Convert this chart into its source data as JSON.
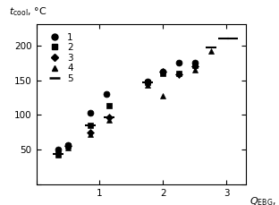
{
  "top_label": "$t_{\\rm cool}$, °C",
  "xlabel": "$Q_{\\rm EBG}$, kW",
  "xlim": [
    0,
    3.3
  ],
  "ylim": [
    0,
    230
  ],
  "xticks": [
    0,
    1,
    2,
    3
  ],
  "yticks": [
    0,
    50,
    100,
    150,
    200
  ],
  "series_order": [
    "1_circle",
    "2_square",
    "3_diamond",
    "4_triangle",
    "5_dash"
  ],
  "series": {
    "1_circle": {
      "x": [
        0.35,
        0.5,
        0.85,
        1.1,
        1.75,
        2.0,
        2.25,
        2.5
      ],
      "y": [
        50,
        57,
        103,
        130,
        148,
        162,
        175,
        175
      ],
      "marker": "o",
      "ms": 5,
      "label": "1"
    },
    "2_square": {
      "x": [
        0.35,
        0.5,
        0.85,
        1.15,
        1.75,
        2.0,
        2.25,
        2.5
      ],
      "y": [
        44,
        55,
        85,
        113,
        147,
        160,
        160,
        172
      ],
      "marker": "s",
      "ms": 5,
      "label": "2"
    },
    "3_diamond": {
      "x": [
        0.5,
        0.85,
        1.15,
        1.75,
        2.0,
        2.25,
        2.5
      ],
      "y": [
        55,
        75,
        97,
        147,
        162,
        158,
        170
      ],
      "marker": "D",
      "ms": 4,
      "label": "3"
    },
    "4_triangle": {
      "x": [
        0.35,
        0.5,
        0.85,
        1.15,
        1.75,
        2.0,
        2.5,
        2.75
      ],
      "y": [
        43,
        53,
        72,
        93,
        143,
        127,
        165,
        192
      ],
      "marker": "^",
      "ms": 5,
      "label": "4"
    },
    "5_dash": {
      "x": [
        0.35,
        0.85,
        1.15,
        1.75,
        2.75,
        2.95,
        3.1
      ],
      "y": [
        44,
        85,
        97,
        147,
        197,
        210,
        210
      ],
      "marker": "_",
      "ms": 8,
      "label": "5"
    }
  },
  "color": "black",
  "legend_fontsize": 7.5,
  "tick_labelsize": 7.5
}
